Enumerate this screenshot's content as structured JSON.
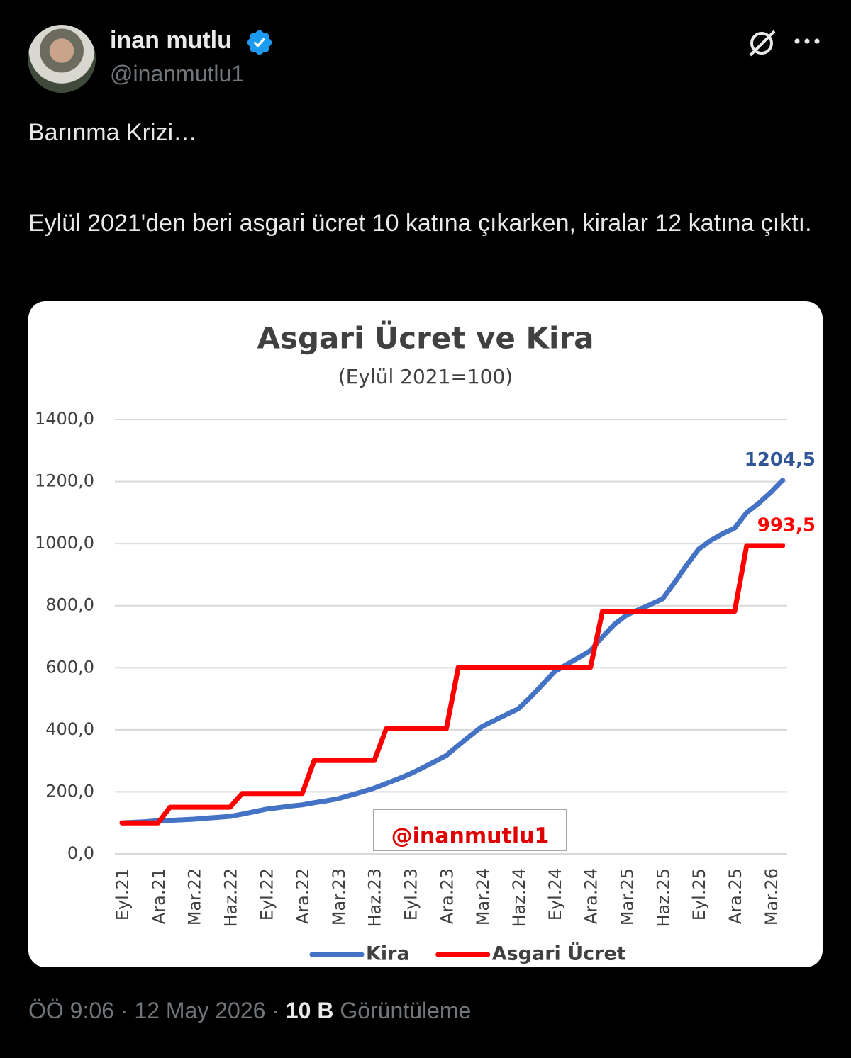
{
  "author": {
    "name": "inan mutlu",
    "handle": "@inanmutlu1"
  },
  "text": {
    "paragraphs": [
      "Barınma Krizi…",
      "Eylül 2021'den beri asgari ücret 10 katına çıkarken, kiralar 12 katına çıktı."
    ]
  },
  "footer": {
    "time": "ÖÖ 9:06",
    "separator": "·",
    "date": "12 May 2026",
    "views": "10 B",
    "views_label": "Görüntüleme"
  },
  "chart_data": {
    "type": "line",
    "title": "Asgari Ücret ve Kira",
    "subtitle": "(Eylül 2021=100)",
    "annotation": "@inanmutlu1",
    "categories": [
      "Eyl.21",
      null,
      null,
      "Ara.21",
      null,
      null,
      "Mar.22",
      null,
      null,
      "Haz.22",
      null,
      null,
      "Eyl.22",
      null,
      null,
      "Ara.22",
      null,
      null,
      "Mar.23",
      null,
      null,
      "Haz.23",
      null,
      null,
      "Eyl.23",
      null,
      null,
      "Ara.23",
      null,
      null,
      "Mar.24",
      null,
      null,
      "Haz.24",
      null,
      null,
      "Eyl.24",
      null,
      null,
      "Ara.24",
      null,
      null,
      "Mar.25",
      null,
      null,
      "Haz.25",
      null,
      null,
      "Eyl.25",
      null,
      null,
      "Ara.25",
      null,
      null,
      "Mar.26",
      null
    ],
    "series": [
      {
        "name": "Kira",
        "color": "#4472c4",
        "values": [
          100,
          102,
          104,
          107,
          108,
          110,
          112,
          115,
          118,
          121,
          128,
          136,
          144,
          149,
          154,
          158,
          165,
          171,
          178,
          189,
          200,
          212,
          227,
          242,
          258,
          277,
          297,
          317,
          350,
          381,
          411,
          430,
          449,
          468,
          505,
          546,
          587,
          610,
          632,
          655,
          700,
          740,
          770,
          787,
          804,
          822,
          875,
          930,
          982,
          1010,
          1032,
          1050,
          1100,
          1130,
          1165,
          1204.5
        ],
        "value_labels": [
          null,
          null,
          null,
          null,
          null,
          null,
          null,
          null,
          null,
          null,
          null,
          null,
          null,
          null,
          null,
          null,
          null,
          null,
          null,
          null,
          null,
          null,
          null,
          null,
          null,
          null,
          null,
          null,
          null,
          null,
          null,
          null,
          null,
          null,
          null,
          null,
          null,
          null,
          null,
          null,
          null,
          null,
          null,
          null,
          null,
          null,
          null,
          null,
          null,
          null,
          null,
          null,
          null,
          null,
          null,
          "1204,5"
        ]
      },
      {
        "name": "Asgari Ücret",
        "color": "#ff0000",
        "values": [
          100,
          100,
          100,
          100,
          150.5,
          150.5,
          150.5,
          150.5,
          150.5,
          150.5,
          194.6,
          194.6,
          194.6,
          194.6,
          194.6,
          194.6,
          301,
          301,
          301,
          301,
          301,
          301,
          403.5,
          403.5,
          403.5,
          403.5,
          403.5,
          403.5,
          601.6,
          601.6,
          601.6,
          601.6,
          601.6,
          601.6,
          601.6,
          601.6,
          601.6,
          601.6,
          601.6,
          601.6,
          782.2,
          782.2,
          782.2,
          782.2,
          782.2,
          782.2,
          782.2,
          782.2,
          782.2,
          782.2,
          782.2,
          782.2,
          993.5,
          993.5,
          993.5,
          993.5
        ],
        "value_labels": [
          null,
          null,
          null,
          null,
          null,
          null,
          null,
          null,
          null,
          null,
          null,
          null,
          null,
          null,
          null,
          null,
          null,
          null,
          null,
          null,
          null,
          null,
          null,
          null,
          null,
          null,
          null,
          null,
          null,
          null,
          null,
          null,
          null,
          null,
          null,
          null,
          null,
          null,
          null,
          null,
          null,
          null,
          null,
          null,
          null,
          null,
          null,
          null,
          null,
          null,
          null,
          null,
          null,
          null,
          null,
          "993,5"
        ]
      }
    ],
    "ylim": [
      0,
      1400
    ],
    "yticks": [
      {
        "value": 0,
        "label": "0,0"
      },
      {
        "value": 200,
        "label": "200,0"
      },
      {
        "value": 400,
        "label": "400,0"
      },
      {
        "value": 600,
        "label": "600,0"
      },
      {
        "value": 800,
        "label": "800,0"
      },
      {
        "value": 1000,
        "label": "1000,0"
      },
      {
        "value": 1200,
        "label": "1200,0"
      },
      {
        "value": 1400,
        "label": "1400,0"
      }
    ],
    "grid": true,
    "legend": "bottom"
  }
}
